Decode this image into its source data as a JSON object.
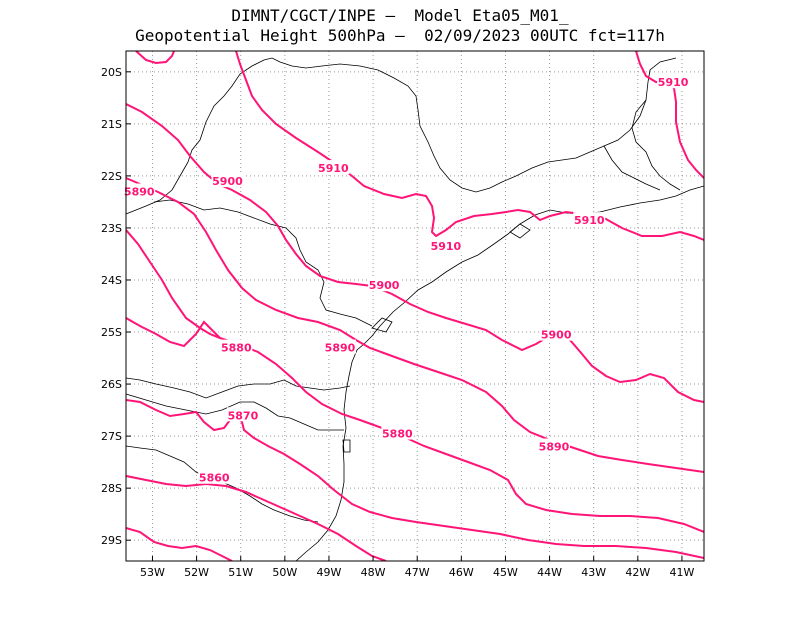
{
  "title": {
    "line1": "DIMNT/CGCT/INPE –  Model Eta05_M01_",
    "line2": "Geopotential Height 500hPa –  02/09/2023 00UTC fct=117h"
  },
  "colors": {
    "contour": "#ff1477",
    "coast": "#000000",
    "grid": "#999999",
    "frame": "#000000"
  },
  "axes": {
    "lat_labels": [
      "20S",
      "21S",
      "22S",
      "23S",
      "24S",
      "25S",
      "26S",
      "27S",
      "28S",
      "29S"
    ],
    "lon_labels": [
      "53W",
      "52W",
      "51W",
      "50W",
      "49W",
      "48W",
      "47W",
      "46W",
      "45W",
      "44W",
      "43W",
      "42W",
      "41W"
    ],
    "lon_range": [
      -53.6,
      -40.5
    ],
    "lat_range": [
      -29.4,
      -19.6
    ]
  },
  "contour_labels": [
    {
      "text": "5910",
      "lon": -41.2,
      "lat": -20.2
    },
    {
      "text": "5910",
      "lon": -48.9,
      "lat": -21.85
    },
    {
      "text": "5900",
      "lon": -51.3,
      "lat": -22.1
    },
    {
      "text": "5890",
      "lon": -53.3,
      "lat": -22.3
    },
    {
      "text": "5910",
      "lon": -46.35,
      "lat": -23.35
    },
    {
      "text": "5910",
      "lon": -43.1,
      "lat": -22.85
    },
    {
      "text": "5900",
      "lon": -47.75,
      "lat": -24.1
    },
    {
      "text": "5900",
      "lon": -43.85,
      "lat": -25.05
    },
    {
      "text": "5880",
      "lon": -51.1,
      "lat": -25.3
    },
    {
      "text": "5890",
      "lon": -48.75,
      "lat": -25.3
    },
    {
      "text": "5870",
      "lon": -50.95,
      "lat": -26.6
    },
    {
      "text": "5880",
      "lon": -47.45,
      "lat": -26.95
    },
    {
      "text": "5890",
      "lon": -43.9,
      "lat": -27.2
    },
    {
      "text": "5860",
      "lon": -51.6,
      "lat": -27.8
    }
  ]
}
